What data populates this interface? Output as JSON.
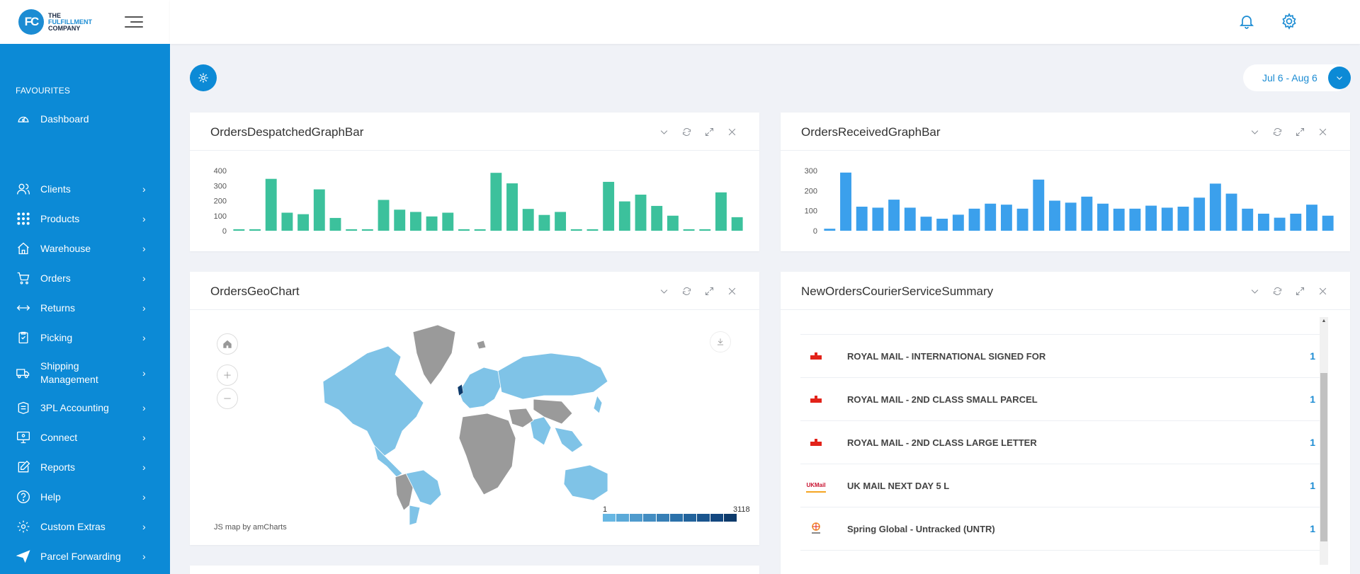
{
  "logo": {
    "initials": "FC",
    "line1": "THE",
    "line2": "FULFILLMENT",
    "line3": "COMPANY"
  },
  "sidebar": {
    "favourites_label": "FAVOURITES",
    "favourite_items": [
      {
        "label": "Dashboard",
        "icon": "speedometer-icon"
      }
    ],
    "items": [
      {
        "label": "Clients",
        "icon": "users-icon"
      },
      {
        "label": "Products",
        "icon": "grid-dots-icon"
      },
      {
        "label": "Warehouse",
        "icon": "home-icon"
      },
      {
        "label": "Orders",
        "icon": "cart-icon"
      },
      {
        "label": "Returns",
        "icon": "arrows-horizontal-icon"
      },
      {
        "label": "Picking",
        "icon": "clipboard-icon"
      },
      {
        "label": "Shipping Management",
        "icon": "truck-icon"
      },
      {
        "label": "3PL Accounting",
        "icon": "ledger-icon"
      },
      {
        "label": "Connect",
        "icon": "monitor-icon"
      },
      {
        "label": "Reports",
        "icon": "edit-icon"
      },
      {
        "label": "Help",
        "icon": "help-circle-icon"
      },
      {
        "label": "Custom Extras",
        "icon": "gear-icon"
      },
      {
        "label": "Parcel Forwarding",
        "icon": "send-icon"
      }
    ]
  },
  "header": {
    "notification_icon": "bell-icon",
    "settings_icon": "gear-icon"
  },
  "dashboard": {
    "settings_button_icon": "gear-icon",
    "date_range": "Jul 6 - Aug 6"
  },
  "panels": {
    "despatched": {
      "title": "OrdersDespatchedGraphBar"
    },
    "received": {
      "title": "OrdersReceivedGraphBar"
    },
    "geo": {
      "title": "OrdersGeoChart",
      "credit": "JS map by amCharts",
      "legend_min": "1",
      "legend_max": "3118"
    },
    "courier": {
      "title": "NewOrdersCourierServiceSummary",
      "rows": [
        {
          "name": "ROYAL MAIL - INTERNATIONAL SIGNED FOR",
          "count": "1",
          "logo": "royal-mail-logo-icon"
        },
        {
          "name": "ROYAL MAIL - 2ND CLASS SMALL PARCEL",
          "count": "1",
          "logo": "royal-mail-logo-icon"
        },
        {
          "name": "ROYAL MAIL - 2ND CLASS LARGE LETTER",
          "count": "1",
          "logo": "royal-mail-logo-icon"
        },
        {
          "name": "UK MAIL NEXT DAY 5 L",
          "count": "1",
          "logo": "uk-mail-logo-icon",
          "logo_text": "UKMail"
        },
        {
          "name": "Spring Global - Untracked (UNTR)",
          "count": "1",
          "logo": "spring-logo-icon"
        }
      ]
    }
  },
  "chart_data": [
    {
      "type": "bar",
      "ylim": [
        0,
        400
      ],
      "yticks": [
        "0",
        "100",
        "200",
        "300",
        "400"
      ],
      "color": "#3cc19c",
      "values": [
        10,
        10,
        345,
        120,
        110,
        275,
        85,
        10,
        10,
        205,
        140,
        125,
        95,
        120,
        10,
        10,
        385,
        315,
        145,
        105,
        125,
        10,
        10,
        325,
        195,
        240,
        165,
        100,
        10,
        10,
        255,
        90
      ]
    },
    {
      "type": "bar",
      "ylim": [
        0,
        300
      ],
      "yticks": [
        "0",
        "100",
        "200",
        "300"
      ],
      "color": "#3ba0ec",
      "values": [
        10,
        290,
        120,
        115,
        155,
        115,
        70,
        60,
        80,
        110,
        135,
        130,
        110,
        255,
        150,
        140,
        170,
        135,
        110,
        110,
        125,
        115,
        120,
        165,
        235,
        185,
        110,
        85,
        65,
        85,
        130,
        75
      ]
    }
  ]
}
